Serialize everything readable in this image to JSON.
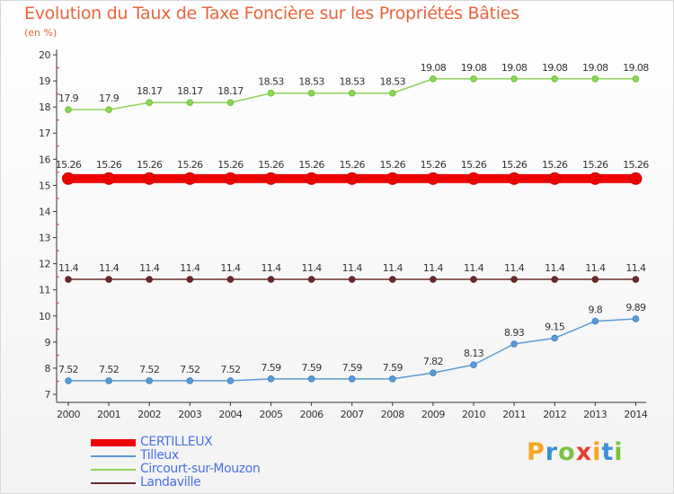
{
  "chart_data": {
    "type": "line",
    "title": "Evolution du Taux de Taxe Foncière sur les Propriétés Bâties",
    "unit_label": "(en %)",
    "xlabel": "",
    "ylabel": "",
    "categories": [
      "2000",
      "2001",
      "2002",
      "2003",
      "2004",
      "2005",
      "2006",
      "2007",
      "2008",
      "2009",
      "2010",
      "2011",
      "2012",
      "2013",
      "2014"
    ],
    "ylim": [
      7,
      20
    ],
    "yticks": [
      7,
      8,
      9,
      10,
      11,
      12,
      13,
      14,
      15,
      16,
      17,
      18,
      19,
      20
    ],
    "series": [
      {
        "name": "CERTILLEUX",
        "color": "#ee0000",
        "emphasis": true,
        "values": [
          15.26,
          15.26,
          15.26,
          15.26,
          15.26,
          15.26,
          15.26,
          15.26,
          15.26,
          15.26,
          15.26,
          15.26,
          15.26,
          15.26,
          15.26
        ],
        "labels": [
          "15.26",
          "15.26",
          "15.26",
          "15.26",
          "15.26",
          "15.26",
          "15.26",
          "15.26",
          "15.26",
          "15.26",
          "15.26",
          "15.26",
          "15.26",
          "15.26",
          "15.26"
        ]
      },
      {
        "name": "Tilleux",
        "color": "#5b9bd5",
        "point_color": "#3f86c8",
        "values": [
          7.52,
          7.52,
          7.52,
          7.52,
          7.52,
          7.59,
          7.59,
          7.59,
          7.59,
          7.82,
          8.13,
          8.93,
          9.15,
          9.8,
          9.89
        ],
        "labels": [
          "7.52",
          "7.52",
          "7.52",
          "7.52",
          "7.52",
          "7.59",
          "7.59",
          "7.59",
          "7.59",
          "7.82",
          "8.13",
          "8.93",
          "9.15",
          "9.8",
          "9.89"
        ]
      },
      {
        "name": "Circourt-sur-Mouzon",
        "color": "#8fd45a",
        "point_color": "#6cc234",
        "values": [
          17.9,
          17.9,
          18.17,
          18.17,
          18.17,
          18.53,
          18.53,
          18.53,
          18.53,
          19.08,
          19.08,
          19.08,
          19.08,
          19.08,
          19.08
        ],
        "labels": [
          "17.9",
          "17.9",
          "18.17",
          "18.17",
          "18.17",
          "18.53",
          "18.53",
          "18.53",
          "18.53",
          "19.08",
          "19.08",
          "19.08",
          "19.08",
          "19.08",
          "19.08"
        ]
      },
      {
        "name": "Landaville",
        "color": "#6b2b2b",
        "point_color": "#5a2020",
        "values": [
          11.4,
          11.4,
          11.4,
          11.4,
          11.4,
          11.4,
          11.4,
          11.4,
          11.4,
          11.4,
          11.4,
          11.4,
          11.4,
          11.4,
          11.4
        ],
        "labels": [
          "11.4",
          "11.4",
          "11.4",
          "11.4",
          "11.4",
          "11.4",
          "11.4",
          "11.4",
          "11.4",
          "11.4",
          "11.4",
          "11.4",
          "11.4",
          "11.4",
          "11.4"
        ]
      }
    ],
    "legend_position": "bottom-left"
  },
  "logo": {
    "letters": [
      "P",
      "r",
      "o",
      "x",
      "i",
      "t",
      "i"
    ],
    "colors": [
      "#f5a623",
      "#3a8fd9",
      "#7cc242",
      "#e2412d",
      "#f5a623",
      "#3a8fd9",
      "#7cc242"
    ]
  }
}
